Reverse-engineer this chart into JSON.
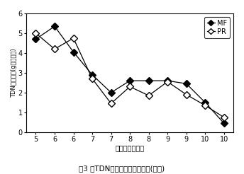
{
  "title": "図3 日TDN生産速度の季節変化(札幌)",
  "xlabel": "月（上･下旬）",
  "ylabel": "TDN生産速度(g／日･㎡)",
  "x_positions": [
    0,
    1,
    2,
    3,
    4,
    5,
    6,
    7,
    8,
    9,
    10
  ],
  "tick_labels": [
    "5",
    "6",
    "6",
    "7",
    "7",
    "8",
    "8",
    "9",
    "9",
    "10",
    "10"
  ],
  "MF_y": [
    4.7,
    5.35,
    4.05,
    2.9,
    2.0,
    2.6,
    2.6,
    2.6,
    2.45,
    1.5,
    0.45
  ],
  "PR_y": [
    5.0,
    4.2,
    4.75,
    2.7,
    1.45,
    2.3,
    1.85,
    2.55,
    1.9,
    1.35,
    0.75
  ],
  "ylim": [
    0,
    6
  ],
  "yticks": [
    0,
    1,
    2,
    3,
    4,
    5,
    6
  ],
  "legend_MF": "MF",
  "legend_PR": "PR",
  "line_color": "#000000",
  "bg_color": "#ffffff"
}
